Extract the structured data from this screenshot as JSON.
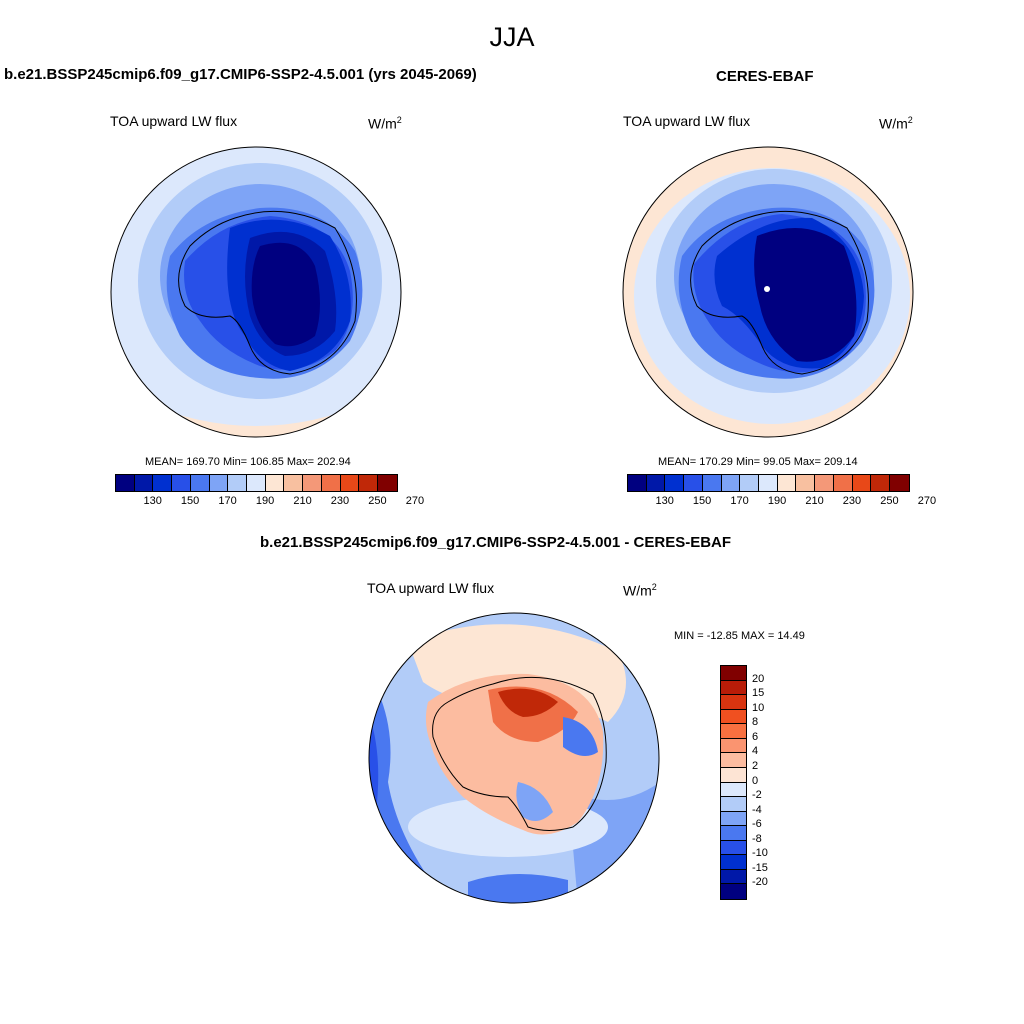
{
  "figure": {
    "season": "JJA"
  },
  "panels": {
    "model": {
      "title": "b.e21.BSSP245cmip6.f09_g17.CMIP6-SSP2-4.5.001 (yrs 2045-2069)",
      "variable": "TOA upward LW flux",
      "units_base": "W/m",
      "units_exp": "2",
      "stats": {
        "mean": "169.70",
        "min": "106.85",
        "max": "202.94"
      },
      "stats_text": "MEAN= 169.70  Min= 106.85  Max= 202.94"
    },
    "obs": {
      "title": "CERES-EBAF",
      "variable": "TOA upward LW flux",
      "units_base": "W/m",
      "units_exp": "2",
      "stats": {
        "mean": "170.29",
        "min": "99.05",
        "max": "209.14"
      },
      "stats_text": "MEAN= 170.29  Min=  99.05  Max= 209.14"
    },
    "diff": {
      "title": "b.e21.BSSP245cmip6.f09_g17.CMIP6-SSP2-4.5.001 - CERES-EBAF",
      "variable": "TOA upward LW flux",
      "units_base": "W/m",
      "units_exp": "2",
      "stats": {
        "min": "-12.85",
        "max": "14.49"
      },
      "stats_text": "MIN = -12.85 MAX =  14.49"
    }
  },
  "colorbars": {
    "absolute": {
      "colors": [
        "#000080",
        "#0018a8",
        "#0030d0",
        "#2850e8",
        "#4a78f0",
        "#7ea4f6",
        "#b2ccf8",
        "#dce8fc",
        "#fde6d4",
        "#f8c0a0",
        "#f49878",
        "#f07048",
        "#e84818",
        "#c02808",
        "#800000"
      ],
      "labels": [
        "130",
        "150",
        "170",
        "190",
        "210",
        "230",
        "250",
        "270"
      ]
    },
    "difference": {
      "colors": [
        "#800000",
        "#b81c08",
        "#d83410",
        "#f05020",
        "#f87040",
        "#fa9470",
        "#fcbca0",
        "#fde4d4",
        "#dce8fc",
        "#b2ccf8",
        "#7ea4f6",
        "#4a78f0",
        "#2850e8",
        "#0030d0",
        "#0018a8",
        "#000080"
      ],
      "labels": [
        "20",
        "15",
        "10",
        "8",
        "6",
        "4",
        "2",
        "0",
        "-2",
        "-4",
        "-6",
        "-8",
        "-10",
        "-15",
        "-20"
      ]
    }
  }
}
